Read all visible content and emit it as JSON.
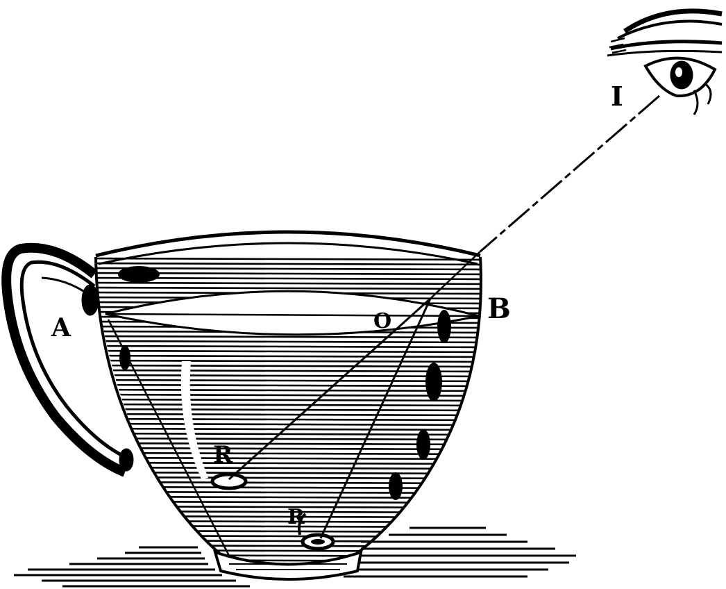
{
  "diagram": {
    "labels": {
      "point_a": "A",
      "point_b": "B",
      "point_o": "O",
      "eye": "I",
      "coin_real": "R",
      "coin_apparent": "R"
    },
    "colors": {
      "ink": "#000000",
      "paper": "#ffffff"
    },
    "icons": {
      "eye": "eye-icon",
      "cup": "teacup-icon",
      "coin": "coin-icon"
    }
  }
}
